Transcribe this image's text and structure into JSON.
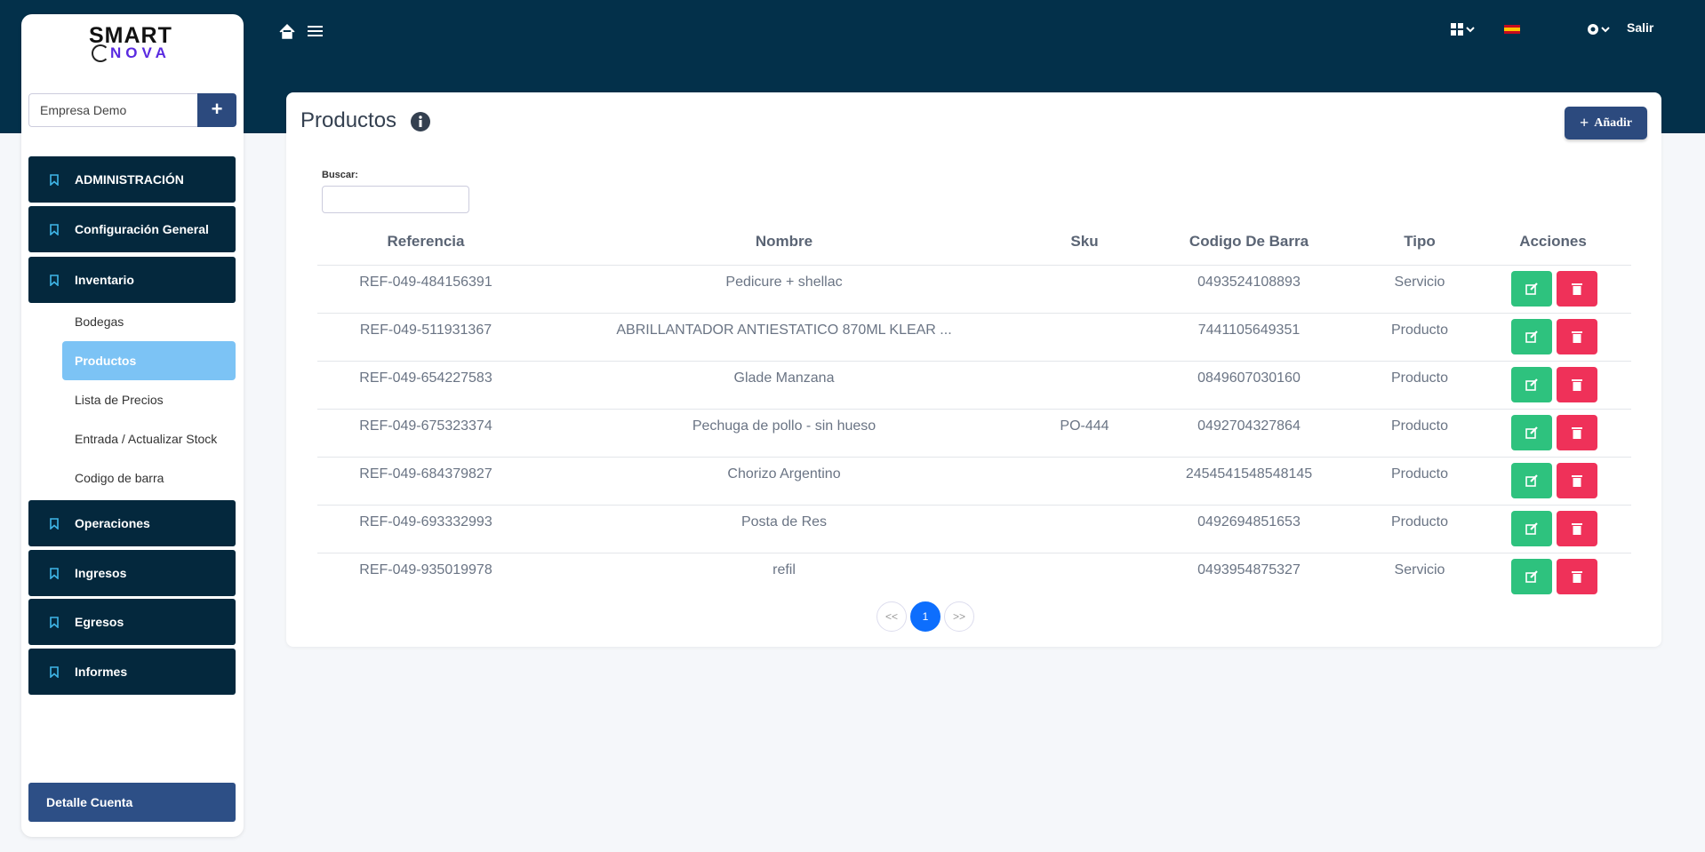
{
  "logo": {
    "line1": "SMART",
    "line2": "NOVA"
  },
  "sidebar": {
    "company": "Empresa Demo",
    "menu": [
      "ADMINISTRACIÓN",
      "Configuración General",
      "Inventario"
    ],
    "submenu": [
      "Bodegas",
      "Productos",
      "Lista de Precios",
      "Entrada / Actualizar Stock",
      "Codigo de barra"
    ],
    "menu2": [
      "Operaciones",
      "Ingresos",
      "Egresos",
      "Informes"
    ],
    "account": "Detalle Cuenta"
  },
  "header": {
    "logout": "Salir"
  },
  "page": {
    "title": "Productos",
    "add_button": "Añadir",
    "search_label": "Buscar:"
  },
  "table": {
    "columns": [
      "Referencia",
      "Nombre",
      "Sku",
      "Codigo De Barra",
      "Tipo",
      "Acciones"
    ],
    "rows": [
      [
        "REF-049-484156391",
        "Pedicure + shellac",
        null,
        "0493524108893",
        "Servicio"
      ],
      [
        "REF-049-511931367",
        "ABRILLANTADOR ANTIESTATICO 870ML KLEAR ...",
        null,
        "7441105649351",
        "Producto"
      ],
      [
        "REF-049-654227583",
        "Glade Manzana",
        null,
        "0849607030160",
        "Producto"
      ],
      [
        "REF-049-675323374",
        "Pechuga de pollo - sin hueso",
        "PO-444",
        "0492704327864",
        "Producto"
      ],
      [
        "REF-049-684379827",
        "Chorizo Argentino",
        null,
        "2454541548548145",
        "Producto"
      ],
      [
        "REF-049-693332993",
        "Posta de Res",
        null,
        "0492694851653",
        "Producto"
      ],
      [
        "REF-049-935019978",
        "refil",
        null,
        "0493954875327",
        "Servicio"
      ]
    ]
  },
  "pagination": [
    "<<",
    "1",
    ">>"
  ]
}
